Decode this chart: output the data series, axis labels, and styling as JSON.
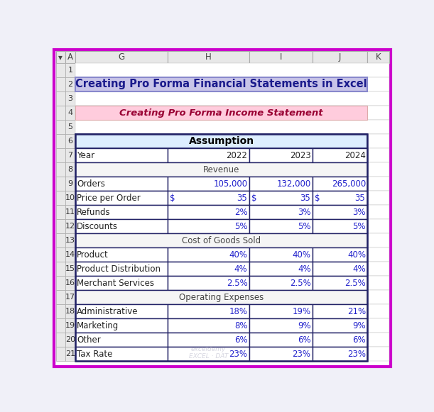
{
  "title1": "Creating Pro Forma Financial Statements in Excel",
  "title2": "Creating Pro Forma Income Statement",
  "title1_bg": "#c8c4e8",
  "title1_color": "#1a1a8c",
  "title2_bg": "#ffccdd",
  "title2_color": "#990033",
  "assumption_header": "Assumption",
  "assumption_bg": "#ddeeff",
  "col_headers": [
    "▾",
    "A",
    "G",
    "H",
    "I",
    "J",
    "K"
  ],
  "col_header_bg": "#e8e8e8",
  "col_header_border": "#aaaaaa",
  "row_numbers": [
    "1",
    "2",
    "3",
    "4",
    "5",
    "6",
    "7",
    "8",
    "9",
    "10",
    "11",
    "12",
    "13",
    "14",
    "15",
    "16",
    "17",
    "18",
    "19",
    "20",
    "21"
  ],
  "outer_border": "#cc00cc",
  "outer_bg": "#f0f0f8",
  "spreadsheet_bg": "#ffffff",
  "row_num_bg": "#eeeeee",
  "grid_color": "#bbbbbb",
  "table_border": "#222266",
  "data_blue": "#2222cc",
  "label_color": "#222222",
  "section_bg": "#f5f5f5",
  "section_color": "#444444",
  "watermark_color": "#bbbbcc",
  "rows": [
    {
      "row": 1,
      "type": "blank"
    },
    {
      "row": 2,
      "type": "title1"
    },
    {
      "row": 3,
      "type": "blank"
    },
    {
      "row": 4,
      "type": "title2"
    },
    {
      "row": 5,
      "type": "blank"
    },
    {
      "row": 6,
      "type": "assumption"
    },
    {
      "row": 7,
      "type": "yearheader",
      "label": "Year",
      "vals": [
        "2022",
        "2023",
        "2024"
      ]
    },
    {
      "row": 8,
      "type": "section",
      "label": "Revenue"
    },
    {
      "row": 9,
      "type": "data",
      "label": "Orders",
      "vals": [
        "105,000",
        "132,000",
        "265,000"
      ],
      "vcolor": "blue"
    },
    {
      "row": 10,
      "type": "dollar",
      "label": "Price per Order",
      "vals": [
        "35",
        "35",
        "35"
      ]
    },
    {
      "row": 11,
      "type": "data",
      "label": "Refunds",
      "vals": [
        "2%",
        "3%",
        "3%"
      ],
      "vcolor": "blue"
    },
    {
      "row": 12,
      "type": "data",
      "label": "Discounts",
      "vals": [
        "5%",
        "5%",
        "5%"
      ],
      "vcolor": "blue"
    },
    {
      "row": 13,
      "type": "section",
      "label": "Cost of Goods Sold"
    },
    {
      "row": 14,
      "type": "data",
      "label": "Product",
      "vals": [
        "40%",
        "40%",
        "40%"
      ],
      "vcolor": "blue"
    },
    {
      "row": 15,
      "type": "data",
      "label": "Product Distribution",
      "vals": [
        "4%",
        "4%",
        "4%"
      ],
      "vcolor": "blue"
    },
    {
      "row": 16,
      "type": "data",
      "label": "Merchant Services",
      "vals": [
        "2.5%",
        "2.5%",
        "2.5%"
      ],
      "vcolor": "blue"
    },
    {
      "row": 17,
      "type": "section",
      "label": "Operating Expenses"
    },
    {
      "row": 18,
      "type": "data",
      "label": "Administrative",
      "vals": [
        "18%",
        "19%",
        "21%"
      ],
      "vcolor": "blue"
    },
    {
      "row": 19,
      "type": "data",
      "label": "Marketing",
      "vals": [
        "8%",
        "9%",
        "9%"
      ],
      "vcolor": "blue"
    },
    {
      "row": 20,
      "type": "data",
      "label": "Other",
      "vals": [
        "6%",
        "6%",
        "6%"
      ],
      "vcolor": "blue"
    },
    {
      "row": 21,
      "type": "data",
      "label": "Tax Rate",
      "vals": [
        "23%",
        "23%",
        "23%"
      ],
      "vcolor": "blue"
    }
  ]
}
